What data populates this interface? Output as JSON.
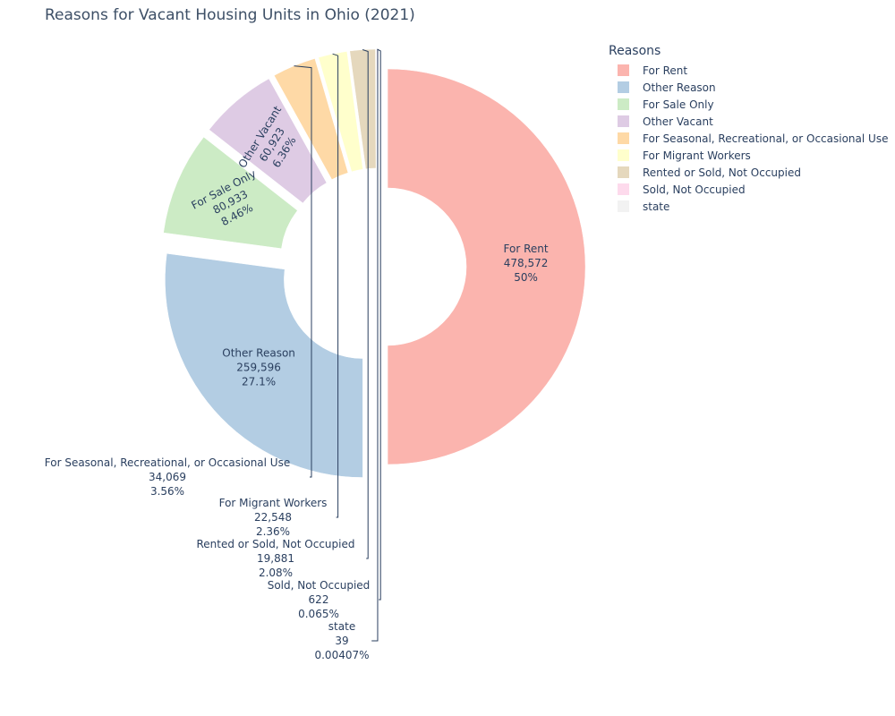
{
  "chart_data": {
    "type": "pie",
    "title": "Reasons for Vacant Housing Units in Ohio (2021)",
    "legend_title": "Reasons",
    "legend_position": "top-right",
    "hole": true,
    "slices": [
      {
        "label": "For Rent",
        "value": 478572,
        "value_text": "478,572",
        "percent_text": "50%",
        "color": "#fbb4ae",
        "pull": 0.05,
        "label_position": "inside"
      },
      {
        "label": "Other Reason",
        "value": 259596,
        "value_text": "259,596",
        "percent_text": "27.1%",
        "color": "#b3cde3",
        "pull": 0.1,
        "label_position": "inside"
      },
      {
        "label": "For Sale Only",
        "value": 80933,
        "value_text": "80,933",
        "percent_text": "8.46%",
        "color": "#ccebc5",
        "pull": 0.1,
        "label_position": "inside"
      },
      {
        "label": "Other Vacant",
        "value": 60923,
        "value_text": "60,923",
        "percent_text": "6.36%",
        "color": "#decbe4",
        "pull": 0.1,
        "label_position": "inside"
      },
      {
        "label": "For Seasonal, Recreational, or Occasional Use",
        "value": 34069,
        "value_text": "34,069",
        "percent_text": "3.56%",
        "color": "#fed9a6",
        "pull": 0.1,
        "label_position": "outside"
      },
      {
        "label": "For Migrant Workers",
        "value": 22548,
        "value_text": "22,548",
        "percent_text": "2.36%",
        "color": "#ffffcc",
        "pull": 0.1,
        "label_position": "outside"
      },
      {
        "label": "Rented or Sold, Not Occupied",
        "value": 19881,
        "value_text": "19,881",
        "percent_text": "2.08%",
        "color": "#e5d8bd",
        "pull": 0.1,
        "label_position": "outside"
      },
      {
        "label": "Sold, Not Occupied",
        "value": 622,
        "value_text": "622",
        "percent_text": "0.065%",
        "color": "#fddaec",
        "pull": 0.1,
        "label_position": "outside"
      },
      {
        "label": "state",
        "value": 39,
        "value_text": "39",
        "percent_text": "0.00407%",
        "color": "#f2f2f2",
        "pull": 0.1,
        "label_position": "outside"
      }
    ]
  }
}
